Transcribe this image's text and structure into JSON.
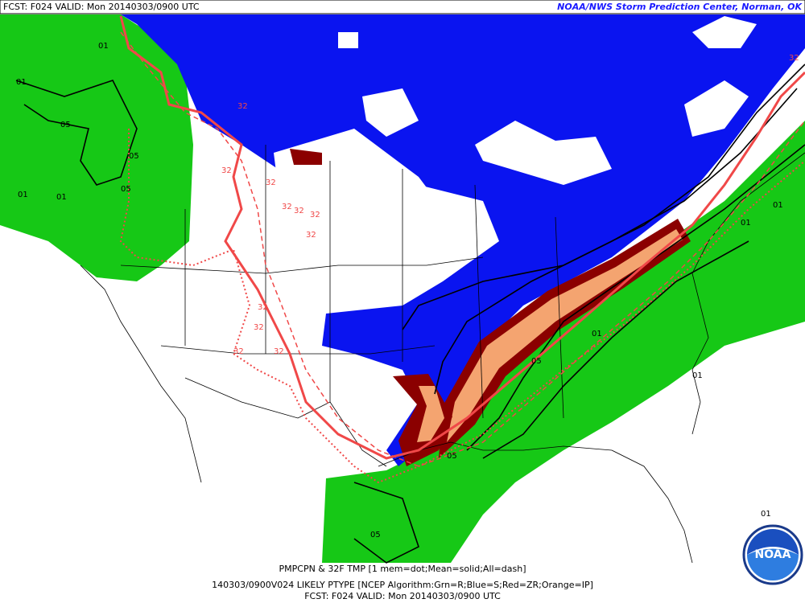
{
  "header": {
    "left": "FCST: F024  VALID: Mon  20140303/0900 UTC",
    "right": "NOAA/NWS Storm Prediction Center, Norman, OK"
  },
  "footer": {
    "line1": "PMPCPN & 32F TMP [1 mem=dot;Mean=solid;All=dash]",
    "line2": "140303/0900V024 LIKELY PTYPE [NCEP Algorithm:Grn=R;Blue=S;Red=ZR;Orange=IP]",
    "line3": "FCST: F024  VALID: Mon  20140303/0900 UTC"
  },
  "logo": "NOAA",
  "map": {
    "contour_labels": [
      "01",
      "05",
      "01",
      "01",
      "05",
      "05",
      "32",
      "32",
      "32",
      "32",
      "32",
      "32",
      "32",
      "32",
      "32",
      "32",
      "32",
      "01",
      "01",
      "01",
      "05",
      "01",
      "01",
      "05",
      "05",
      "01",
      "32"
    ]
  }
}
